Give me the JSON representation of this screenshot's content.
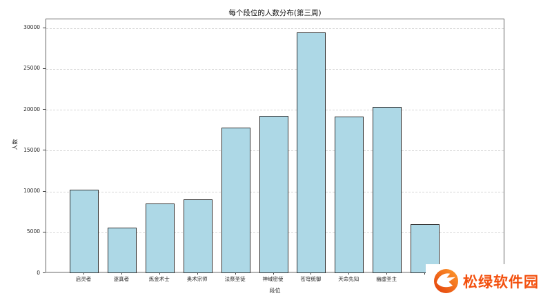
{
  "chart_data": {
    "type": "bar",
    "title": "每个段位的人数分布(第三周)",
    "xlabel": "段位",
    "ylabel": "人数",
    "categories": [
      "启灵者",
      "逐真者",
      "炼金术士",
      "奥术宗师",
      "法祭圣徒",
      "神域密使",
      "苍穹统御",
      "天命先知",
      "幽虚圣主",
      ""
    ],
    "values": [
      10200,
      5600,
      8500,
      9000,
      17800,
      19250,
      29500,
      19200,
      20350,
      6000
    ],
    "yticks": [
      0,
      5000,
      10000,
      15000,
      20000,
      25000,
      30000
    ],
    "ylim": [
      0,
      31080
    ],
    "grid": "horizontal-dashed",
    "legend_position": "none",
    "bar_color": "#ADD8E6",
    "bar_edge_color": "#2f2f2f"
  },
  "watermark": {
    "text": "松绿软件园",
    "text_color": "#f3500e",
    "logo": "swirl-flame-logo-icon",
    "logo_colors": [
      "#e23c0a",
      "#ff9d2e"
    ]
  }
}
